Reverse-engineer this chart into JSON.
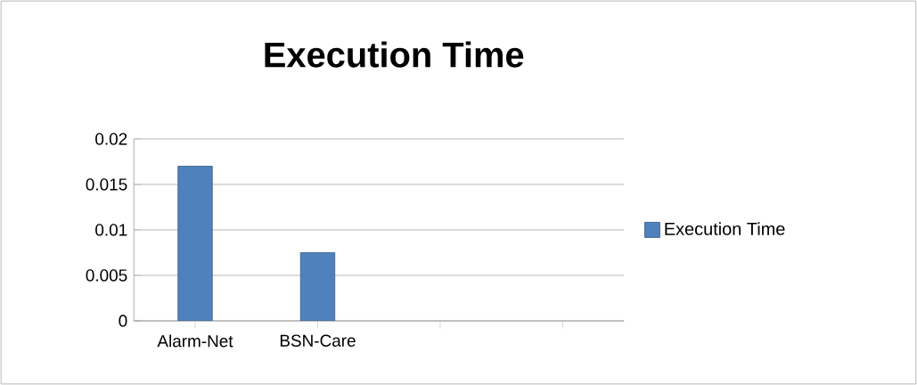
{
  "chart_data": {
    "type": "bar",
    "title": "Execution Time",
    "categories": [
      "Alarm-Net",
      "BSN-Care",
      null,
      null
    ],
    "series": [
      {
        "name": "Execution Time",
        "color": "#4f81bd",
        "values": [
          0.017,
          0.0075,
          null,
          null
        ]
      }
    ],
    "ylim": [
      0,
      0.02
    ],
    "yticks": [
      0,
      0.005,
      0.01,
      0.015,
      0.02
    ],
    "grid": "y",
    "legend": "right"
  }
}
